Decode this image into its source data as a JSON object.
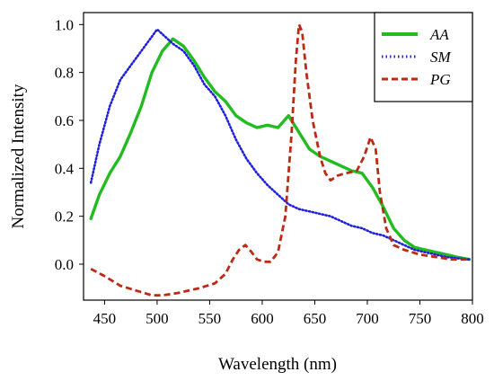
{
  "chart_data": {
    "type": "line",
    "xlabel": "Wavelength (nm)",
    "ylabel": "Normalized Intensity",
    "xlim": [
      430,
      800
    ],
    "ylim": [
      -0.15,
      1.05
    ],
    "xticks": [
      450,
      500,
      550,
      600,
      650,
      700,
      750,
      800
    ],
    "yticks": [
      0.0,
      0.2,
      0.4,
      0.6,
      0.8,
      1.0
    ],
    "xtick_labels": [
      "450",
      "500",
      "550",
      "600",
      "650",
      "700",
      "750",
      "800"
    ],
    "ytick_labels": [
      "0.0",
      "0.2",
      "0.4",
      "0.6",
      "0.8",
      "1.0"
    ],
    "grid": false,
    "legend_position": "top-right",
    "series": [
      {
        "name": "AA",
        "color": "#22bb22",
        "style": "solid",
        "x": [
          437,
          445,
          455,
          465,
          475,
          485,
          495,
          505,
          515,
          525,
          535,
          545,
          555,
          565,
          575,
          585,
          595,
          605,
          615,
          625,
          635,
          645,
          655,
          665,
          675,
          685,
          695,
          705,
          715,
          725,
          735,
          745,
          755,
          765,
          775,
          785,
          797
        ],
        "y": [
          0.19,
          0.29,
          0.38,
          0.45,
          0.55,
          0.66,
          0.8,
          0.89,
          0.94,
          0.91,
          0.85,
          0.78,
          0.72,
          0.68,
          0.62,
          0.59,
          0.57,
          0.58,
          0.57,
          0.62,
          0.55,
          0.48,
          0.45,
          0.43,
          0.41,
          0.39,
          0.38,
          0.32,
          0.24,
          0.15,
          0.1,
          0.07,
          0.06,
          0.05,
          0.04,
          0.03,
          0.02
        ]
      },
      {
        "name": "SM",
        "color": "#2020dd",
        "style": "dotted",
        "x": [
          437,
          445,
          455,
          465,
          475,
          485,
          495,
          500,
          505,
          515,
          525,
          535,
          545,
          555,
          565,
          575,
          585,
          595,
          605,
          615,
          625,
          635,
          645,
          655,
          665,
          675,
          685,
          695,
          705,
          715,
          725,
          735,
          745,
          755,
          765,
          775,
          785,
          797
        ],
        "y": [
          0.34,
          0.5,
          0.66,
          0.77,
          0.83,
          0.89,
          0.95,
          0.98,
          0.96,
          0.92,
          0.89,
          0.83,
          0.75,
          0.7,
          0.62,
          0.52,
          0.44,
          0.38,
          0.33,
          0.29,
          0.25,
          0.23,
          0.22,
          0.21,
          0.2,
          0.18,
          0.16,
          0.15,
          0.13,
          0.12,
          0.1,
          0.08,
          0.06,
          0.05,
          0.04,
          0.03,
          0.025,
          0.02
        ]
      },
      {
        "name": "PG",
        "color": "#bb2a15",
        "style": "dashed",
        "x": [
          437,
          450,
          465,
          480,
          495,
          505,
          520,
          540,
          555,
          565,
          572,
          578,
          584,
          590,
          595,
          602,
          608,
          615,
          622,
          628,
          632,
          635,
          638,
          642,
          648,
          655,
          660,
          665,
          672,
          680,
          690,
          697,
          703,
          708,
          712,
          718,
          725,
          735,
          750,
          765,
          780,
          797
        ],
        "y": [
          -0.02,
          -0.05,
          -0.09,
          -0.11,
          -0.13,
          -0.13,
          -0.12,
          -0.1,
          -0.08,
          -0.04,
          0.02,
          0.06,
          0.08,
          0.05,
          0.02,
          0.01,
          0.01,
          0.05,
          0.2,
          0.55,
          0.85,
          1.0,
          0.97,
          0.8,
          0.6,
          0.45,
          0.38,
          0.35,
          0.37,
          0.38,
          0.39,
          0.45,
          0.53,
          0.48,
          0.3,
          0.15,
          0.08,
          0.06,
          0.04,
          0.03,
          0.02,
          0.02
        ]
      }
    ]
  }
}
